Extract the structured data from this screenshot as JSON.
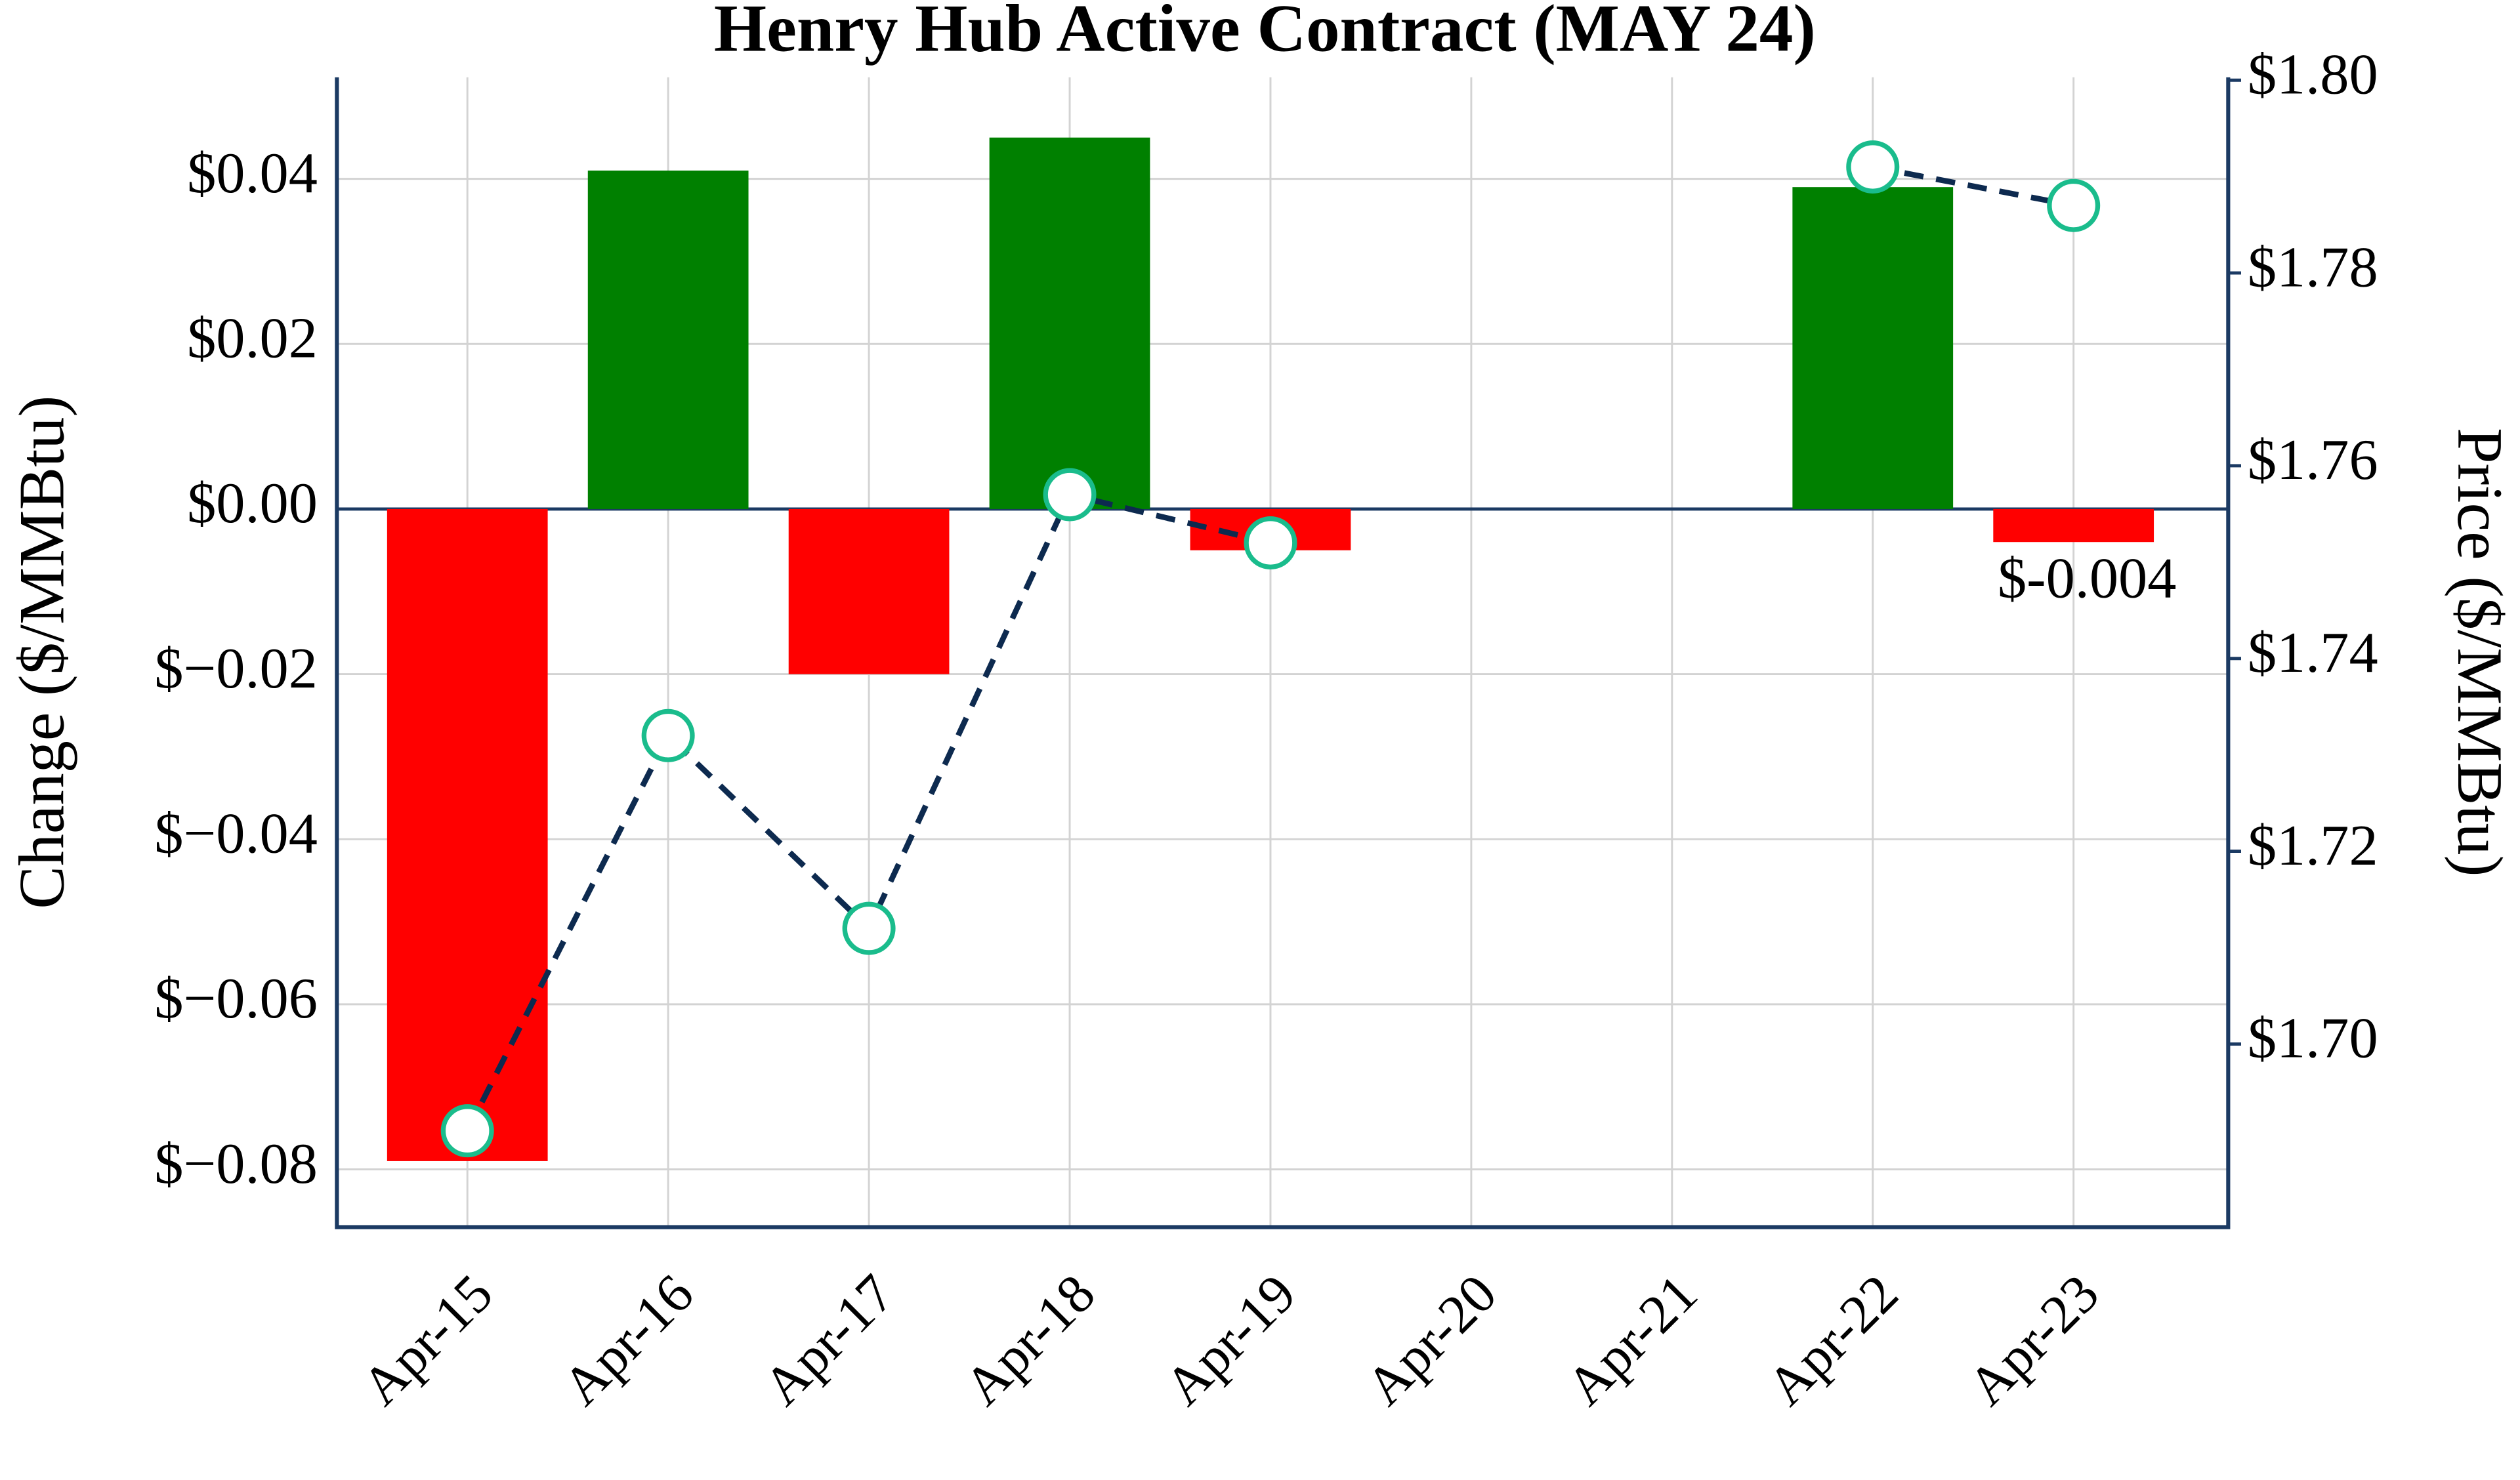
{
  "chart_data": {
    "type": "bar",
    "title": "Henry Hub Active Contract (MAY 24)",
    "ylabel": "Change ($/MMBtu)",
    "y2label": "Price ($/MMBtu)",
    "categories": [
      "Apr-15",
      "Apr-16",
      "Apr-17",
      "Apr-18",
      "Apr-19",
      "Apr-20",
      "Apr-21",
      "Apr-22",
      "Apr-23"
    ],
    "series": [
      {
        "type": "bar",
        "values": [
          -0.079,
          0.041,
          -0.02,
          0.045,
          -0.005,
          null,
          null,
          0.039,
          -0.004
        ],
        "value_labels": [
          null,
          null,
          null,
          null,
          null,
          null,
          null,
          null,
          "$-0.004"
        ],
        "up_color": "#008000",
        "down_color": "#ff0000"
      },
      {
        "type": "line",
        "axis": "y2",
        "values": [
          1.691,
          1.732,
          1.712,
          1.757,
          1.752,
          null,
          null,
          1.791,
          1.787
        ],
        "color": "#0d2a4f",
        "marker_edge_color": "#1abc8c",
        "marker_fill": "#ffffff",
        "dashed": true
      }
    ],
    "ylim": [
      -0.087,
      0.0523
    ],
    "yticks": [
      {
        "value": -0.08,
        "label": "$−0.08"
      },
      {
        "value": -0.06,
        "label": "$−0.06"
      },
      {
        "value": -0.04,
        "label": "$−0.04"
      },
      {
        "value": -0.02,
        "label": "$−0.02"
      },
      {
        "value": 0,
        "label": "$0.00"
      },
      {
        "value": 0.02,
        "label": "$0.02"
      },
      {
        "value": 0.04,
        "label": "$0.04"
      }
    ],
    "y2lim": [
      1.681,
      1.8003
    ],
    "y2ticks": [
      {
        "value": 1.7,
        "label": "$1.70"
      },
      {
        "value": 1.72,
        "label": "$1.72"
      },
      {
        "value": 1.74,
        "label": "$1.74"
      },
      {
        "value": 1.76,
        "label": "$1.76"
      },
      {
        "value": 1.78,
        "label": "$1.78"
      },
      {
        "value": 1.8,
        "label": "$1.80"
      }
    ],
    "grid": true
  }
}
